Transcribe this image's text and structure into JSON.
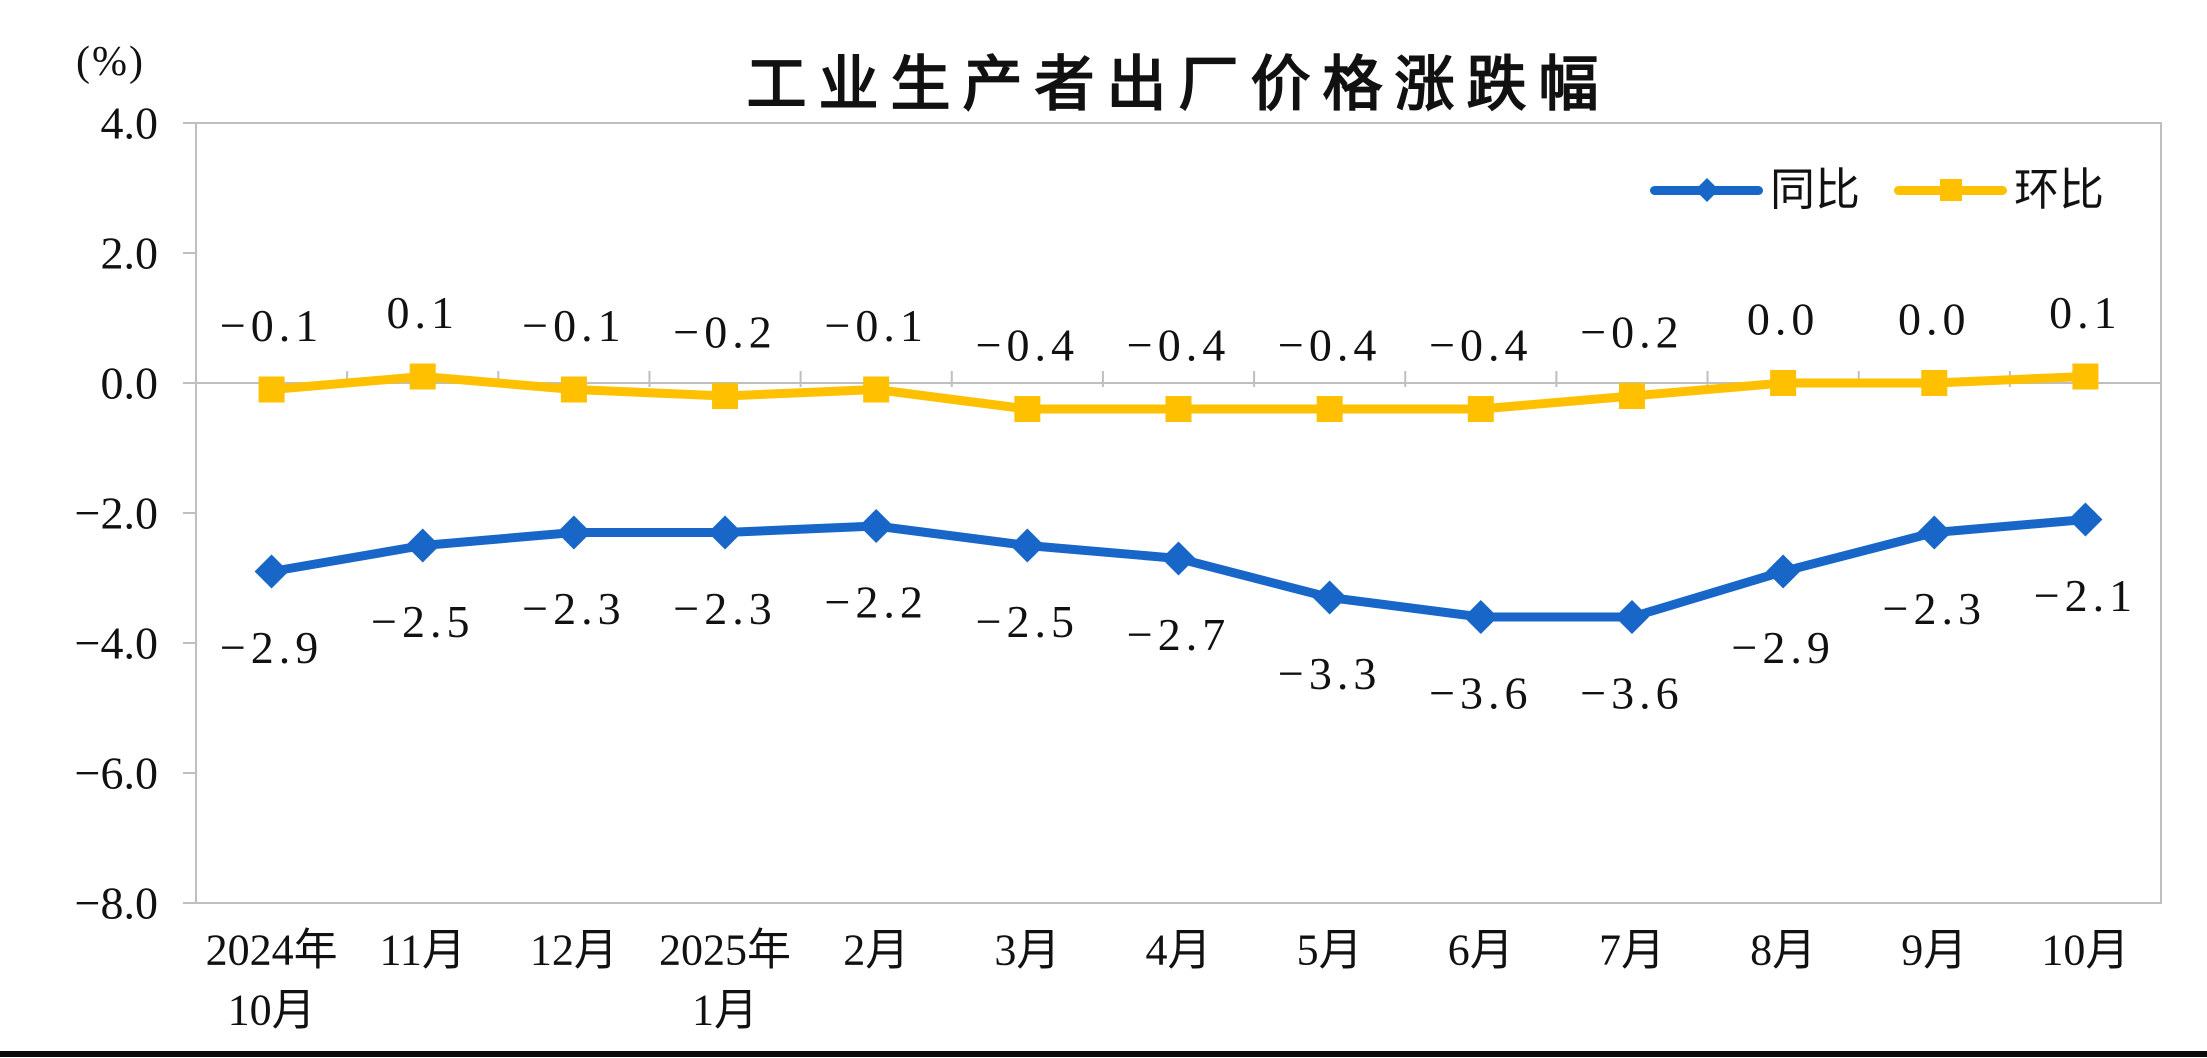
{
  "chart_data": {
    "type": "line",
    "title": "工业生产者出厂价格涨跌幅",
    "y_axis_unit_label": "(%)",
    "categories": [
      "2024年\n10月",
      "11月",
      "12月",
      "2025年\n1月",
      "2月",
      "3月",
      "4月",
      "5月",
      "6月",
      "7月",
      "8月",
      "9月",
      "10月"
    ],
    "series": [
      {
        "name": "同比",
        "color": "#1766C8",
        "marker": "diamond",
        "label_position": "below",
        "values": [
          -2.9,
          -2.5,
          -2.3,
          -2.3,
          -2.2,
          -2.5,
          -2.7,
          -3.3,
          -3.6,
          -3.6,
          -2.9,
          -2.3,
          -2.1
        ]
      },
      {
        "name": "环比",
        "color": "#FFC000",
        "marker": "square",
        "label_position": "above",
        "values": [
          -0.1,
          0.1,
          -0.1,
          -0.2,
          -0.1,
          -0.4,
          -0.4,
          -0.4,
          -0.4,
          -0.2,
          0.0,
          0.0,
          0.1
        ]
      }
    ],
    "ylim": [
      -8.0,
      4.0
    ],
    "y_ticks": [
      4.0,
      2.0,
      0.0,
      -2.0,
      -4.0,
      -6.0,
      -8.0
    ],
    "data_labels": true,
    "grid": "zero-line-only",
    "legend_position": "top-right",
    "axis_color": "#BFBFBF",
    "text_color": "#111111"
  }
}
